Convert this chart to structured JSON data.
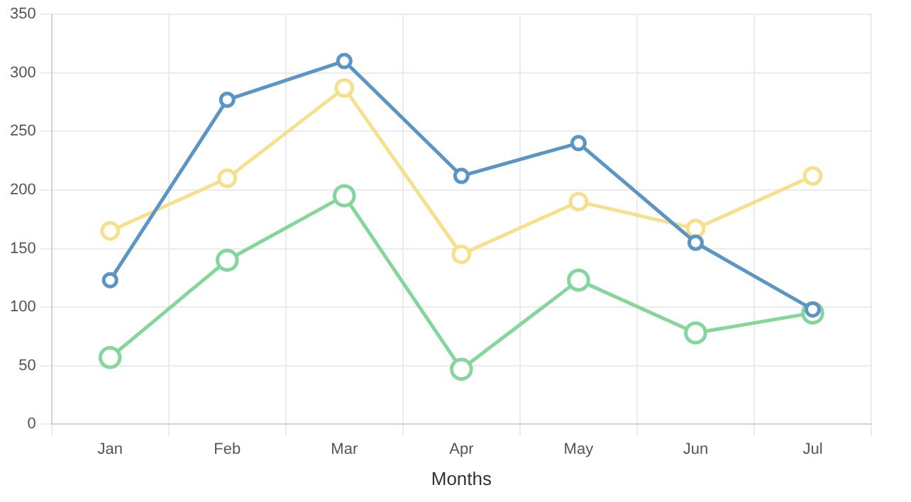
{
  "chart_data": {
    "type": "line",
    "xlabel": "Months",
    "categories": [
      "Jan",
      "Feb",
      "Mar",
      "Apr",
      "May",
      "Jun",
      "Jul"
    ],
    "series": [
      {
        "color": "#5b95c4",
        "values": [
          123,
          277,
          310,
          212,
          240,
          155,
          98
        ]
      },
      {
        "color": "#f6e08c",
        "values": [
          165,
          210,
          287,
          145,
          190,
          167,
          212
        ]
      },
      {
        "color": "#86d59c",
        "values": [
          57,
          140,
          195,
          47,
          123,
          78,
          95
        ]
      }
    ],
    "ylim": [
      0,
      350
    ],
    "yticks": [
      0,
      50,
      100,
      150,
      200,
      250,
      300,
      350
    ],
    "grid": true,
    "legend": false,
    "marker": "circle",
    "line_style": "solid"
  }
}
